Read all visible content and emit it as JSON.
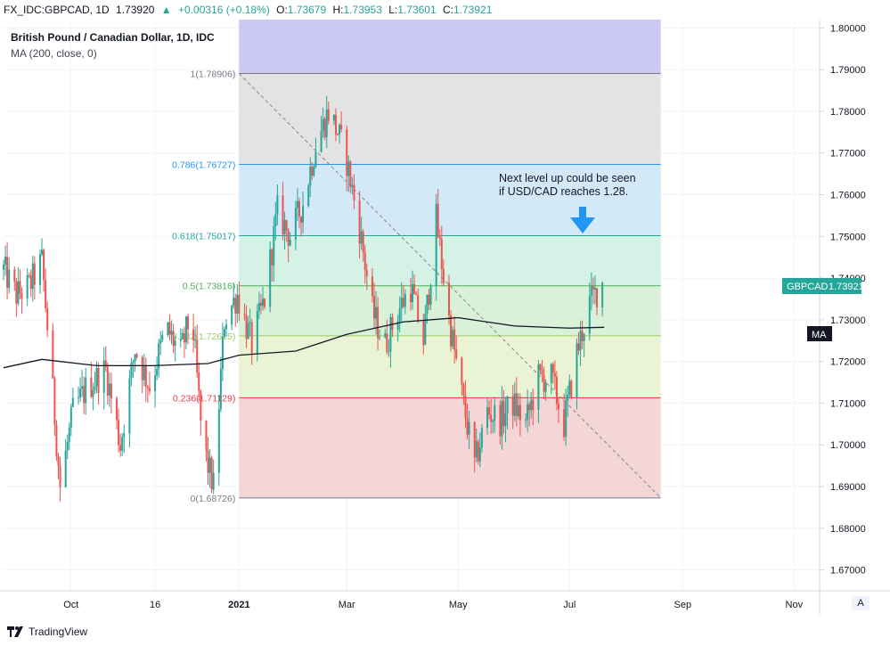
{
  "header": {
    "symbol": "FX_IDC:GBPCAD, 1D",
    "last": "1.73920",
    "change": "+0.00316 (+0.18%)",
    "o_label": "O:",
    "o": "1.73679",
    "h_label": "H:",
    "h": "1.73953",
    "l_label": "L:",
    "l": "1.73601",
    "c_label": "C:",
    "c": "1.73921"
  },
  "legend": {
    "title": "British Pound / Canadian Dollar, 1D, IDC",
    "indicator": "MA (200, close, 0)"
  },
  "badges": {
    "price_symbol": "GBPCAD",
    "price_value": "1.73921",
    "ma": "MA"
  },
  "annotation": {
    "line1": "Next level up could be seen",
    "line2": "if USD/CAD reaches 1.28."
  },
  "footer": {
    "brand": "TradingView",
    "auto": "A"
  },
  "colors": {
    "up": "#26a69a",
    "down": "#ef5350",
    "ma": "#131722",
    "grid": "#f0f3fa",
    "badge": "#26a69a",
    "arrow": "#2196f3"
  },
  "chart_data": {
    "type": "candlestick",
    "symbol": "GBPCAD",
    "ylim": [
      1.665,
      1.802
    ],
    "yticks": [
      1.67,
      1.68,
      1.69,
      1.7,
      1.71,
      1.72,
      1.73,
      1.74,
      1.75,
      1.76,
      1.77,
      1.78,
      1.79,
      1.8
    ],
    "ytick_labels": [
      "1.67000",
      "1.68000",
      "1.69000",
      "1.70000",
      "1.71000",
      "1.72000",
      "1.73000",
      "1.74000",
      "1.75000",
      "1.76000",
      "1.77000",
      "1.78000",
      "1.79000",
      "1.80000"
    ],
    "xlim": [
      "2020-08-25",
      "2021-11-15"
    ],
    "xticks": [
      {
        "date": "2020-10-01",
        "label": "Oct"
      },
      {
        "date": "2020-11-16",
        "label": "16"
      },
      {
        "date": "2021-01-01",
        "label": "2021"
      },
      {
        "date": "2021-03-01",
        "label": "Mar"
      },
      {
        "date": "2021-05-01",
        "label": "May"
      },
      {
        "date": "2021-07-01",
        "label": "Jul"
      },
      {
        "date": "2021-09-01",
        "label": "Sep"
      },
      {
        "date": "2021-11-01",
        "label": "Nov"
      }
    ],
    "close_path": [
      [
        "2020-08-25",
        1.742
      ],
      [
        "2020-09-01",
        1.736
      ],
      [
        "2020-09-08",
        1.738
      ],
      [
        "2020-09-15",
        1.744
      ],
      [
        "2020-09-20",
        1.718
      ],
      [
        "2020-09-25",
        1.69
      ],
      [
        "2020-10-02",
        1.708
      ],
      [
        "2020-10-10",
        1.714
      ],
      [
        "2020-10-20",
        1.718
      ],
      [
        "2020-10-28",
        1.7
      ],
      [
        "2020-11-05",
        1.723
      ],
      [
        "2020-11-13",
        1.714
      ],
      [
        "2020-11-22",
        1.728
      ],
      [
        "2020-11-30",
        1.722
      ],
      [
        "2020-12-06",
        1.732
      ],
      [
        "2020-12-12",
        1.7
      ],
      [
        "2020-12-18",
        1.69
      ],
      [
        "2020-12-24",
        1.73
      ],
      [
        "2020-12-31",
        1.736
      ],
      [
        "2021-01-08",
        1.724
      ],
      [
        "2021-01-15",
        1.735
      ],
      [
        "2021-01-22",
        1.756
      ],
      [
        "2021-01-29",
        1.75
      ],
      [
        "2021-02-05",
        1.758
      ],
      [
        "2021-02-12",
        1.772
      ],
      [
        "2021-02-19",
        1.78
      ],
      [
        "2021-02-24",
        1.775
      ],
      [
        "2021-03-01",
        1.768
      ],
      [
        "2021-03-08",
        1.752
      ],
      [
        "2021-03-15",
        1.732
      ],
      [
        "2021-03-22",
        1.724
      ],
      [
        "2021-03-29",
        1.732
      ],
      [
        "2021-04-05",
        1.738
      ],
      [
        "2021-04-12",
        1.725
      ],
      [
        "2021-04-19",
        1.754
      ],
      [
        "2021-04-26",
        1.73
      ],
      [
        "2021-05-03",
        1.712
      ],
      [
        "2021-05-10",
        1.695
      ],
      [
        "2021-05-17",
        1.708
      ],
      [
        "2021-05-24",
        1.706
      ],
      [
        "2021-05-31",
        1.71
      ],
      [
        "2021-06-07",
        1.705
      ],
      [
        "2021-06-14",
        1.716
      ],
      [
        "2021-06-21",
        1.716
      ],
      [
        "2021-06-28",
        1.705
      ],
      [
        "2021-07-05",
        1.722
      ],
      [
        "2021-07-12",
        1.734
      ],
      [
        "2021-07-19",
        1.739
      ]
    ],
    "ma200": {
      "name": "MA (200, close, 0)",
      "points": [
        [
          "2020-08-25",
          1.7185
        ],
        [
          "2020-09-15",
          1.7205
        ],
        [
          "2020-10-15",
          1.719
        ],
        [
          "2020-11-15",
          1.719
        ],
        [
          "2020-12-15",
          1.7195
        ],
        [
          "2021-01-01",
          1.7215
        ],
        [
          "2021-02-01",
          1.7225
        ],
        [
          "2021-03-01",
          1.7265
        ],
        [
          "2021-04-01",
          1.7295
        ],
        [
          "2021-05-01",
          1.7305
        ],
        [
          "2021-06-01",
          1.7285
        ],
        [
          "2021-07-01",
          1.728
        ],
        [
          "2021-07-20",
          1.7282
        ]
      ]
    },
    "fibonacci": {
      "start": [
        "2021-01-01",
        1.78906
      ],
      "end": [
        "2021-08-20",
        1.68726
      ],
      "levels": [
        {
          "ratio": 1,
          "value": 1.78906,
          "label": "1(1.78906)",
          "color": "#787b86"
        },
        {
          "ratio": 0.786,
          "value": 1.76727,
          "label": "0.786(1.76727)",
          "color": "#2196f3"
        },
        {
          "ratio": 0.618,
          "value": 1.75017,
          "label": "0.618(1.75017)",
          "color": "#26a69a"
        },
        {
          "ratio": 0.5,
          "value": 1.73816,
          "label": "0.5(1.73816)",
          "color": "#4caf50"
        },
        {
          "ratio": 0.382,
          "value": 1.72615,
          "label": "0.382(1.72615)",
          "color": "#9ccc65"
        },
        {
          "ratio": 0.236,
          "value": 1.71129,
          "label": "0.236(1.71129)",
          "color": "#f23645"
        },
        {
          "ratio": 0,
          "value": 1.68726,
          "label": "0(1.68726)",
          "color": "#787b86"
        }
      ]
    },
    "last_price": 1.73921
  }
}
